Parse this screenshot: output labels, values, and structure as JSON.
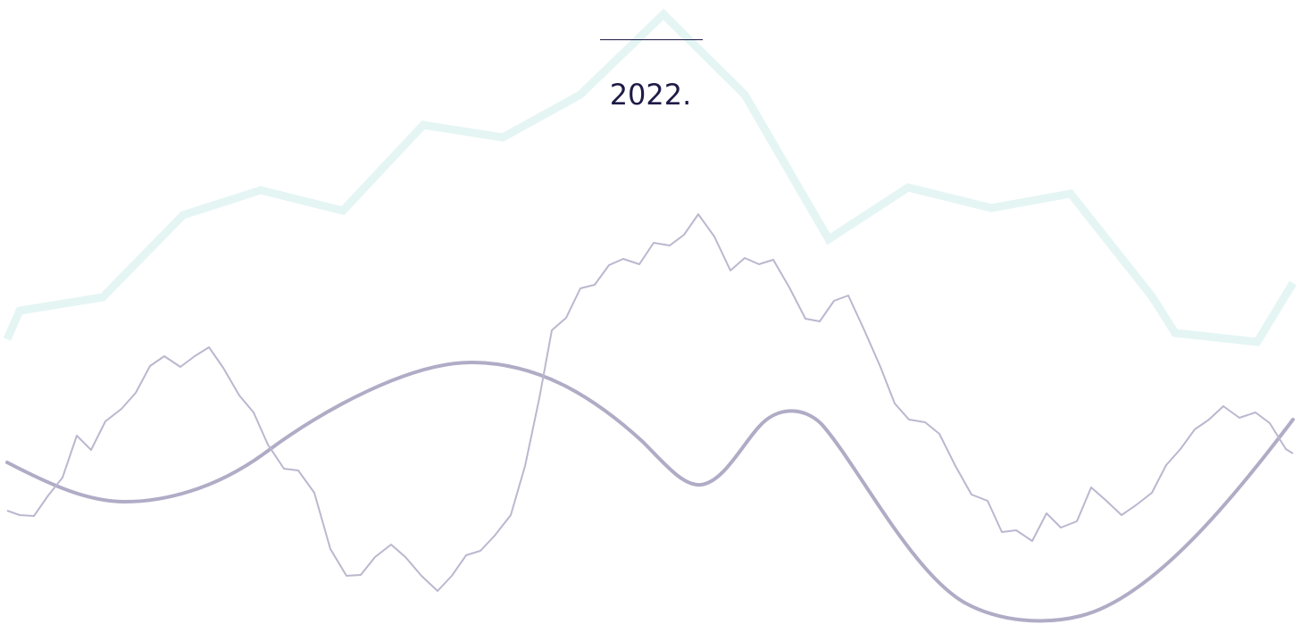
{
  "year_text": "2022.",
  "colors": {
    "text": "#1e1b47",
    "light_line": "#e4f5f4",
    "wave_line": "#b0acc6",
    "jagged_line": "#bbb7cf",
    "background": "#ffffff"
  },
  "decorative_lines": [
    "light-polyline",
    "smooth-wave",
    "jagged-line"
  ]
}
